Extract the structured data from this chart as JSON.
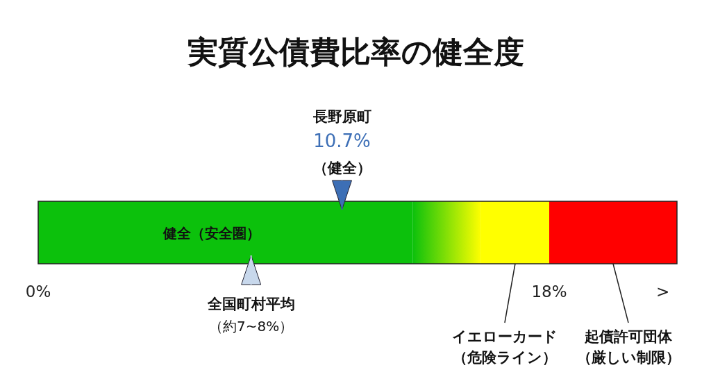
{
  "chart_data": {
    "type": "bar",
    "orientation": "horizontal",
    "stacked": true,
    "title": "実質公債費比率の健全度",
    "categories": [
      null
    ],
    "series": [
      {
        "name": "健全（安全圏）",
        "color": "#0cc10c",
        "values": [
          13.2
        ]
      },
      {
        "color": "#ffff00",
        "values": [
          2.4
        ]
      },
      {
        "name": "イエローカード（危険ライン）",
        "color": "#ffff00",
        "values": [
          2.4
        ]
      },
      {
        "name": "起債許可団体（厳しい制限）",
        "color": "#ff0000",
        "values": [
          4.5
        ]
      }
    ],
    "xlim": [
      0,
      22.5
    ],
    "xticks": [
      {
        "value": 0,
        "label": "0%"
      },
      {
        "value": 18,
        "label": "18%"
      },
      {
        "value": 22,
        "label": ">"
      }
    ],
    "ref_lines": [
      {
        "axis": "x",
        "value": 10.7,
        "color": "#3d6fb6"
      },
      {
        "axis": "x",
        "value": 7.5,
        "label": "全国町村平均",
        "color": "#c8d8ec"
      }
    ],
    "annotations": [
      "長野原町",
      "10.7%",
      "（健全）",
      "（約7~8%）"
    ]
  }
}
